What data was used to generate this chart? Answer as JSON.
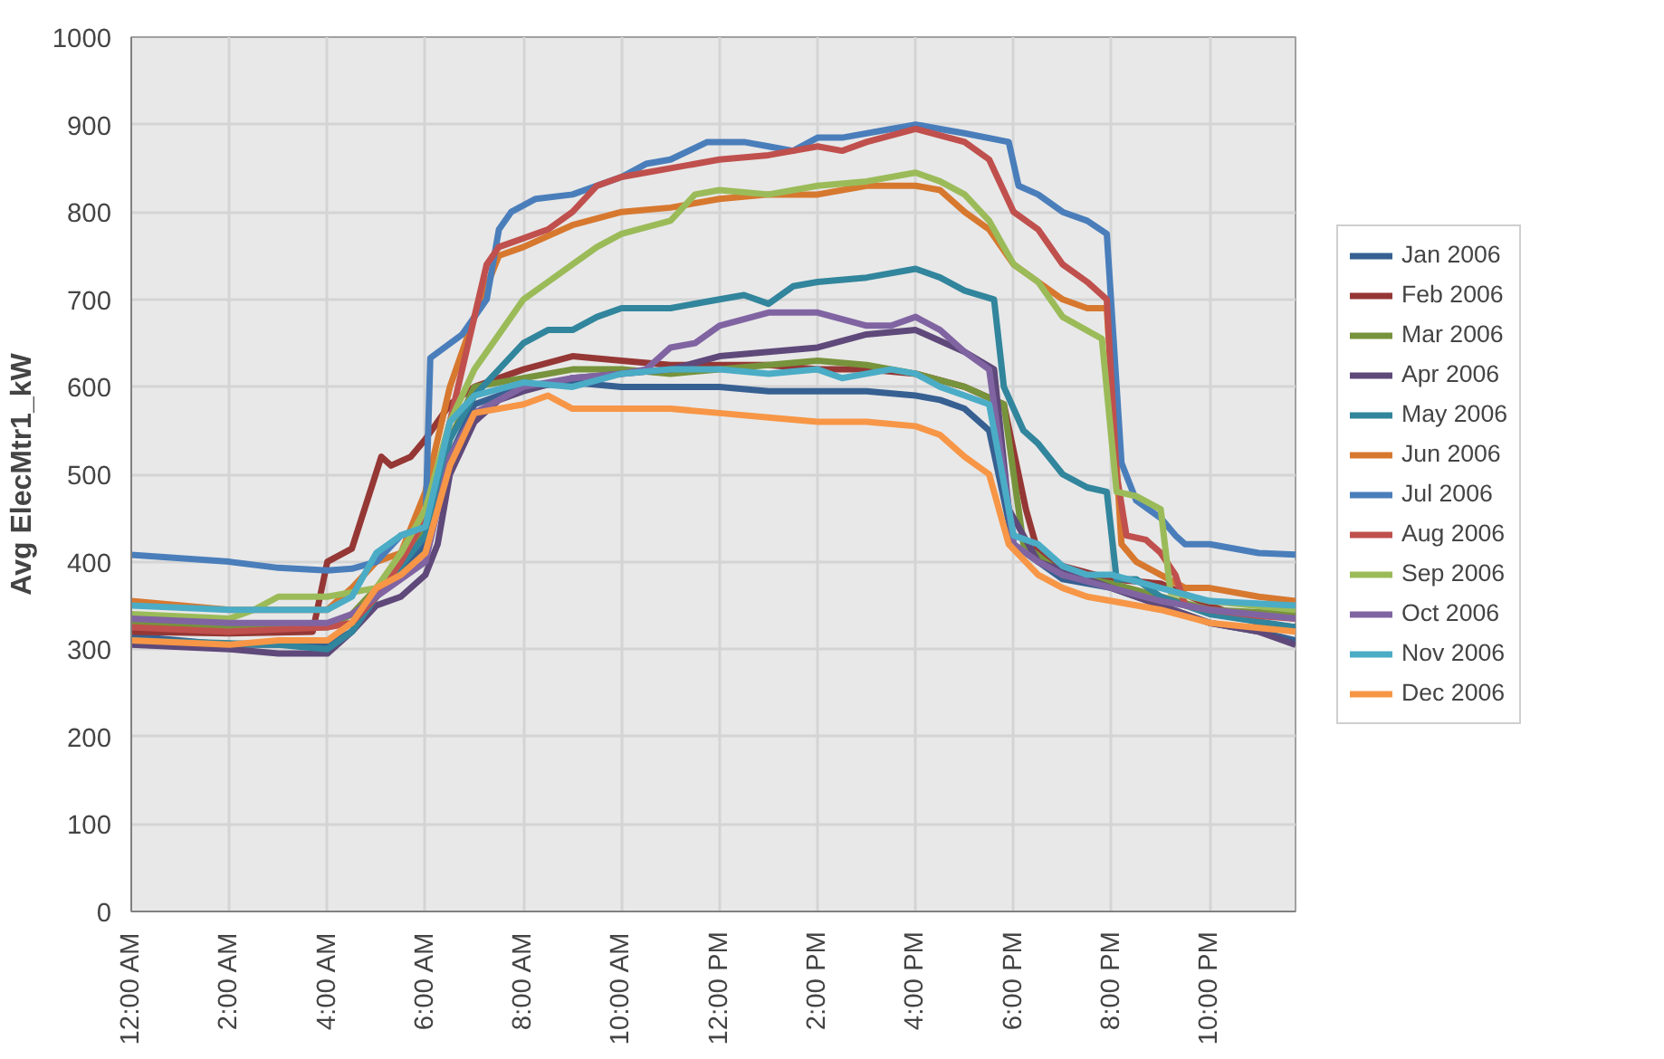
{
  "chart_data": {
    "type": "line",
    "ylabel": "Avg ElecMtr1_kW",
    "xlim": [
      0,
      23.75
    ],
    "ylim": [
      0,
      1000
    ],
    "xticks": [
      {
        "value": 0,
        "label": "12:00 AM"
      },
      {
        "value": 2,
        "label": "2:00 AM"
      },
      {
        "value": 4,
        "label": "4:00 AM"
      },
      {
        "value": 6,
        "label": "6:00 AM"
      },
      {
        "value": 8,
        "label": "8:00 AM"
      },
      {
        "value": 10,
        "label": "10:00 AM"
      },
      {
        "value": 12,
        "label": "12:00 PM"
      },
      {
        "value": 14,
        "label": "2:00 PM"
      },
      {
        "value": 16,
        "label": "4:00 PM"
      },
      {
        "value": 18,
        "label": "6:00 PM"
      },
      {
        "value": 20,
        "label": "8:00 PM"
      },
      {
        "value": 22,
        "label": "10:00 PM"
      }
    ],
    "yticks": [
      0,
      100,
      200,
      300,
      400,
      500,
      600,
      700,
      800,
      900,
      1000
    ],
    "grid": true,
    "legend": "right",
    "marker": "none",
    "line_style": "solid",
    "series": [
      {
        "name": "Jan 2006",
        "color": "#376092",
        "x": [
          0,
          2,
          4,
          4.5,
          5,
          6,
          6.5,
          7,
          8,
          9,
          10,
          11,
          12,
          13,
          14,
          15,
          16,
          16.5,
          17,
          17.5,
          18,
          19,
          20,
          21,
          22,
          23,
          23.75
        ],
        "values": [
          315,
          305,
          305,
          320,
          360,
          420,
          520,
          580,
          600,
          605,
          600,
          600,
          600,
          595,
          595,
          595,
          590,
          585,
          575,
          550,
          420,
          380,
          370,
          350,
          330,
          320,
          310
        ]
      },
      {
        "name": "Feb 2006",
        "color": "#953735",
        "x": [
          0,
          2,
          3.7,
          4,
          4.5,
          5.1,
          5.3,
          5.7,
          6,
          6.5,
          7,
          8,
          9,
          10,
          11,
          12,
          13,
          14,
          15,
          16,
          17,
          17.8,
          18.25,
          18.5,
          19,
          20,
          21,
          22,
          23,
          23.75
        ],
        "values": [
          320,
          318,
          320,
          400,
          415,
          520,
          510,
          520,
          540,
          580,
          600,
          620,
          635,
          630,
          625,
          625,
          625,
          620,
          620,
          615,
          600,
          580,
          460,
          410,
          395,
          380,
          375,
          350,
          330,
          325
        ]
      },
      {
        "name": "Mar 2006",
        "color": "#77933c",
        "x": [
          0,
          2,
          4,
          4.5,
          5,
          5.5,
          6,
          6.5,
          7,
          8,
          9,
          10,
          11,
          12,
          13,
          14,
          15,
          16,
          17,
          17.8,
          18.2,
          19,
          20,
          21,
          22,
          23.75
        ],
        "values": [
          330,
          325,
          325,
          340,
          370,
          400,
          440,
          540,
          600,
          610,
          620,
          620,
          615,
          620,
          625,
          630,
          625,
          615,
          600,
          580,
          420,
          385,
          375,
          360,
          345,
          340
        ]
      },
      {
        "name": "Apr 2006",
        "color": "#5f497a",
        "x": [
          0,
          2,
          3,
          4,
          4.5,
          5,
          5.5,
          6,
          6.25,
          6.5,
          7,
          7.5,
          8,
          9,
          10,
          11,
          12,
          13,
          14,
          15,
          16,
          17,
          17.6,
          17.9,
          18.5,
          19,
          20,
          21,
          22,
          23,
          23.75
        ],
        "values": [
          305,
          300,
          295,
          295,
          320,
          350,
          360,
          385,
          420,
          500,
          560,
          585,
          595,
          610,
          615,
          620,
          635,
          640,
          645,
          660,
          665,
          640,
          620,
          460,
          400,
          390,
          370,
          350,
          330,
          320,
          305
        ]
      },
      {
        "name": "May 2006",
        "color": "#31859c",
        "x": [
          0,
          3,
          4,
          4.5,
          5,
          6,
          6.5,
          7,
          7.5,
          8,
          8.5,
          9,
          9.5,
          10,
          11,
          12,
          12.5,
          13,
          13.5,
          14,
          15,
          16,
          16.5,
          17,
          17.6,
          17.8,
          18.2,
          18.5,
          19,
          19.5,
          19.9,
          20.1,
          20.5,
          21,
          22,
          23.75
        ],
        "values": [
          310,
          305,
          300,
          320,
          360,
          430,
          540,
          590,
          620,
          650,
          665,
          665,
          680,
          690,
          690,
          700,
          705,
          695,
          715,
          720,
          725,
          735,
          725,
          710,
          700,
          600,
          550,
          535,
          500,
          485,
          480,
          380,
          380,
          360,
          340,
          325
        ]
      },
      {
        "name": "Jun 2006",
        "color": "#d7782f",
        "x": [
          0,
          2,
          4,
          4.5,
          5,
          5.5,
          6,
          6.5,
          7,
          7.5,
          8,
          9,
          10,
          11,
          12,
          13,
          14,
          15,
          16,
          16.5,
          17,
          17.5,
          18,
          18.5,
          19,
          19.5,
          19.9,
          20.2,
          20.5,
          21,
          21.5,
          22,
          23,
          23.75
        ],
        "values": [
          355,
          345,
          345,
          370,
          400,
          410,
          480,
          600,
          680,
          750,
          760,
          785,
          800,
          805,
          815,
          820,
          820,
          830,
          830,
          825,
          800,
          780,
          740,
          720,
          700,
          690,
          690,
          420,
          400,
          385,
          370,
          370,
          360,
          355
        ]
      },
      {
        "name": "Jul 2006",
        "color": "#4a7ebb",
        "x": [
          0,
          2,
          3,
          4,
          4.5,
          5,
          5.5,
          6,
          6.1,
          6.75,
          7.25,
          7.5,
          7.75,
          8.25,
          9,
          10,
          10.5,
          11,
          11.75,
          12.5,
          13,
          13.5,
          14,
          14.5,
          15.5,
          16,
          16.5,
          17,
          17.9,
          18.1,
          18.5,
          19,
          19.5,
          19.9,
          20.2,
          20.5,
          21,
          21.3,
          21.5,
          22,
          23,
          23.75
        ],
        "values": [
          408,
          400,
          393,
          390,
          392,
          400,
          430,
          440,
          633,
          660,
          700,
          780,
          800,
          815,
          820,
          840,
          855,
          860,
          880,
          880,
          875,
          870,
          885,
          885,
          895,
          900,
          895,
          890,
          880,
          830,
          820,
          800,
          790,
          775,
          513,
          470,
          450,
          430,
          420,
          420,
          410,
          408
        ]
      },
      {
        "name": "Aug 2006",
        "color": "#c0504d",
        "x": [
          0,
          2,
          4,
          4.5,
          5,
          5.5,
          6,
          6.5,
          7,
          7.25,
          7.5,
          8,
          8.5,
          9,
          9.5,
          10,
          11,
          12,
          13,
          13.5,
          14,
          14.5,
          15,
          16,
          17,
          17.5,
          18,
          18.5,
          19,
          19.5,
          19.9,
          20.1,
          20.3,
          20.7,
          21,
          21.3,
          21.5,
          22,
          23,
          23.75
        ],
        "values": [
          325,
          320,
          325,
          330,
          360,
          400,
          450,
          560,
          680,
          740,
          760,
          770,
          780,
          800,
          830,
          840,
          850,
          860,
          865,
          870,
          875,
          870,
          880,
          895,
          880,
          860,
          800,
          780,
          740,
          720,
          700,
          500,
          430,
          425,
          410,
          385,
          350,
          345,
          338,
          335
        ]
      },
      {
        "name": "Sep 2006",
        "color": "#9bbb59",
        "x": [
          0,
          2,
          2.5,
          3,
          4,
          4.5,
          5,
          5.5,
          6,
          6.5,
          7,
          7.5,
          8,
          8.5,
          9,
          9.5,
          10,
          11,
          11.5,
          12,
          13,
          14,
          15,
          16,
          16.5,
          17,
          17.5,
          18,
          18.5,
          19,
          19.8,
          20.1,
          20.5,
          21,
          21.2,
          22,
          23.75
        ],
        "values": [
          340,
          335,
          345,
          360,
          360,
          365,
          370,
          410,
          460,
          560,
          620,
          660,
          700,
          720,
          740,
          760,
          775,
          790,
          820,
          825,
          820,
          830,
          835,
          845,
          835,
          820,
          790,
          740,
          720,
          680,
          655,
          480,
          475,
          460,
          365,
          355,
          345
        ]
      },
      {
        "name": "Oct 2006",
        "color": "#8064a2",
        "x": [
          0,
          2,
          4,
          4.5,
          5,
          5.5,
          6,
          6.5,
          7,
          8,
          9,
          10,
          10.5,
          11,
          11.5,
          12,
          13,
          14,
          15,
          15.5,
          16,
          16.5,
          17,
          17.5,
          18,
          18.5,
          19,
          20,
          21,
          22,
          23.75
        ],
        "values": [
          335,
          330,
          330,
          340,
          360,
          380,
          400,
          520,
          570,
          600,
          610,
          615,
          620,
          645,
          650,
          670,
          685,
          685,
          670,
          670,
          680,
          665,
          640,
          620,
          420,
          400,
          385,
          370,
          355,
          345,
          335
        ]
      },
      {
        "name": "Nov 2006",
        "color": "#4bacc6",
        "x": [
          0,
          2,
          4,
          4.5,
          5,
          5.5,
          6,
          6.5,
          7,
          8,
          9,
          10,
          11,
          12,
          13,
          14,
          14.5,
          15,
          15.5,
          16,
          16.5,
          17,
          17.5,
          18,
          18.5,
          19,
          19.5,
          20,
          21,
          22,
          23.75
        ],
        "values": [
          350,
          345,
          345,
          360,
          410,
          430,
          440,
          560,
          590,
          605,
          600,
          615,
          620,
          620,
          615,
          620,
          610,
          615,
          620,
          615,
          600,
          590,
          580,
          430,
          420,
          395,
          385,
          385,
          370,
          355,
          350
        ]
      },
      {
        "name": "Dec 2006",
        "color": "#f79646",
        "x": [
          0,
          2,
          3,
          4,
          4.5,
          5,
          5.5,
          6,
          6.5,
          7,
          8,
          8.5,
          9,
          10,
          11,
          12,
          13,
          14,
          15,
          16,
          16.5,
          17,
          17.5,
          17.9,
          18.5,
          19,
          19.5,
          20,
          21,
          22,
          23.75
        ],
        "values": [
          310,
          305,
          310,
          310,
          330,
          370,
          385,
          410,
          510,
          570,
          580,
          590,
          575,
          575,
          575,
          570,
          565,
          560,
          560,
          555,
          545,
          520,
          500,
          420,
          385,
          370,
          360,
          355,
          345,
          330,
          320
        ]
      }
    ]
  }
}
